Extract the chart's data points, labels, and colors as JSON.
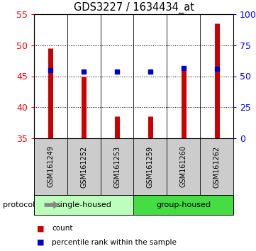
{
  "title": "GDS3227 / 1634434_at",
  "samples": [
    "GSM161249",
    "GSM161252",
    "GSM161253",
    "GSM161259",
    "GSM161260",
    "GSM161262"
  ],
  "bar_values": [
    49.5,
    44.9,
    38.5,
    38.6,
    46.5,
    53.5
  ],
  "percentile_values": [
    46.0,
    45.8,
    45.7,
    45.7,
    46.3,
    46.2
  ],
  "bar_color": "#cc0000",
  "percentile_color": "#0000cc",
  "ylim_left": [
    35,
    55
  ],
  "ylim_right": [
    0,
    100
  ],
  "yticks_left": [
    35,
    40,
    45,
    50,
    55
  ],
  "yticks_right": [
    0,
    25,
    50,
    75,
    100
  ],
  "ytick_labels_right": [
    "0",
    "25",
    "50",
    "75",
    "100%"
  ],
  "group_bg_color": "#bbffbb",
  "group2_bg_color": "#44dd44",
  "label_bg_color": "#cccccc",
  "groups": [
    {
      "label": "single-housed",
      "span": [
        0,
        2
      ]
    },
    {
      "label": "group-housed",
      "span": [
        3,
        5
      ]
    }
  ],
  "protocol_label": "protocol",
  "legend_count": "count",
  "legend_percentile": "percentile rank within the sample",
  "background_color": "#ffffff"
}
